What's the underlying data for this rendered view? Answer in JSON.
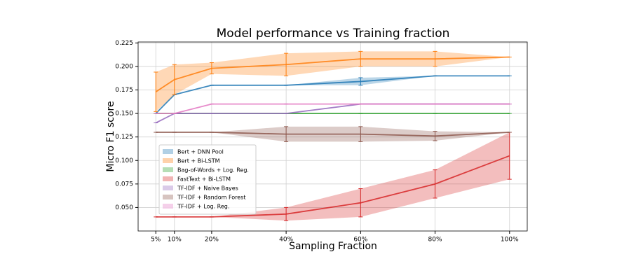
{
  "chart_data": {
    "type": "line",
    "title": "Model performance vs Training fraction",
    "xlabel": "Sampling Fraction",
    "ylabel": "Micro F1 score",
    "x": [
      5,
      10,
      20,
      40,
      60,
      80,
      100
    ],
    "xlim": [
      0.25,
      104.75
    ],
    "xticks": [
      {
        "value": 5,
        "label": "5%"
      },
      {
        "value": 10,
        "label": "10%"
      },
      {
        "value": 20,
        "label": "20%"
      },
      {
        "value": 40,
        "label": "40%"
      },
      {
        "value": 60,
        "label": "60%"
      },
      {
        "value": 80,
        "label": "80%"
      },
      {
        "value": 100,
        "label": "100%"
      }
    ],
    "ylim": [
      0.025,
      0.226
    ],
    "yticks": [
      {
        "value": 0.05,
        "label": "0.050"
      },
      {
        "value": 0.075,
        "label": "0.075"
      },
      {
        "value": 0.1,
        "label": "0.100"
      },
      {
        "value": 0.125,
        "label": "0.125"
      },
      {
        "value": 0.15,
        "label": "0.150"
      },
      {
        "value": 0.175,
        "label": "0.175"
      },
      {
        "value": 0.2,
        "label": "0.200"
      },
      {
        "value": 0.225,
        "label": "0.225"
      }
    ],
    "grid": true,
    "legend": "center left",
    "series": [
      {
        "name": "Bert + DNN Pool",
        "color": "#1f77b4",
        "values": [
          0.15,
          0.17,
          0.18,
          0.18,
          0.184,
          0.19,
          0.19
        ],
        "errors": [
          0,
          0,
          0,
          0,
          0.004,
          0,
          0
        ]
      },
      {
        "name": "Bert + Bi-LSTM",
        "color": "#ff7f0e",
        "values": [
          0.173,
          0.186,
          0.198,
          0.202,
          0.208,
          0.208,
          0.21
        ],
        "errors": [
          0.021,
          0.016,
          0.006,
          0.012,
          0.008,
          0.008,
          0
        ]
      },
      {
        "name": "Bag-of-Words + Log. Reg.",
        "color": "#2ca02c",
        "values": [
          0.15,
          0.15,
          0.15,
          0.15,
          0.15,
          0.15,
          0.15
        ],
        "errors": [
          0,
          0,
          0,
          0,
          0,
          0,
          0
        ]
      },
      {
        "name": "FastText + Bi-LSTM",
        "color": "#d62728",
        "values": [
          0.04,
          0.04,
          0.04,
          0.043,
          0.055,
          0.075,
          0.105
        ],
        "errors": [
          0,
          0,
          0,
          0.007,
          0.015,
          0.015,
          0.025
        ]
      },
      {
        "name": "TF-IDF + Naive Bayes",
        "color": "#9467bd",
        "values": [
          0.14,
          0.15,
          0.15,
          0.15,
          0.16,
          0.16,
          0.16
        ],
        "errors": [
          0,
          0,
          0,
          0,
          0,
          0,
          0
        ]
      },
      {
        "name": "TF-IDF + Random Forest",
        "color": "#8c564b",
        "values": [
          0.13,
          0.13,
          0.13,
          0.128,
          0.128,
          0.126,
          0.13
        ],
        "errors": [
          0,
          0,
          0,
          0.008,
          0.008,
          0.005,
          0
        ]
      },
      {
        "name": "TF-IDF + Log. Reg.",
        "color": "#e377c2",
        "values": [
          0.15,
          0.15,
          0.16,
          0.16,
          0.16,
          0.16,
          0.16
        ],
        "errors": [
          0,
          0,
          0,
          0,
          0,
          0,
          0
        ]
      }
    ]
  }
}
